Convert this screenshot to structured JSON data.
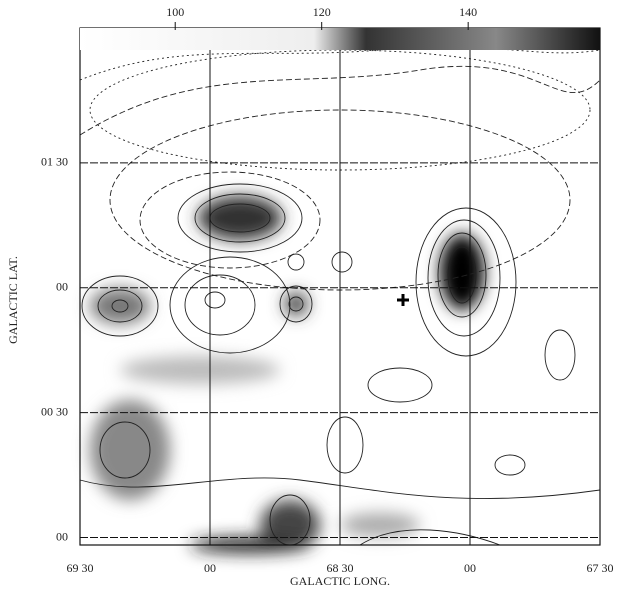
{
  "chart_data": {
    "type": "contour",
    "x_label": "GALACTIC LONG.",
    "y_label": "GALACTIC LAT.",
    "xlim": [
      69.5,
      67.5
    ],
    "ylim": [
      -0.03,
      2.04
    ],
    "xticks": [
      {
        "value": 69.5,
        "label": "69 30"
      },
      {
        "value": 69.0,
        "label": "00"
      },
      {
        "value": 68.5,
        "label": "68 30"
      },
      {
        "value": 68.0,
        "label": "00"
      },
      {
        "value": 67.5,
        "label": "67 30"
      }
    ],
    "yticks": [
      {
        "value": 0,
        "label": "00"
      },
      {
        "value": 0.5,
        "label": "00 30"
      },
      {
        "value": 1.0,
        "label": "00"
      },
      {
        "value": 1.5,
        "label": "01 30"
      }
    ],
    "grid": true,
    "colorbar_lim": [
      87,
      158
    ],
    "colorbar_ticks": [
      100,
      120,
      140
    ]
  }
}
